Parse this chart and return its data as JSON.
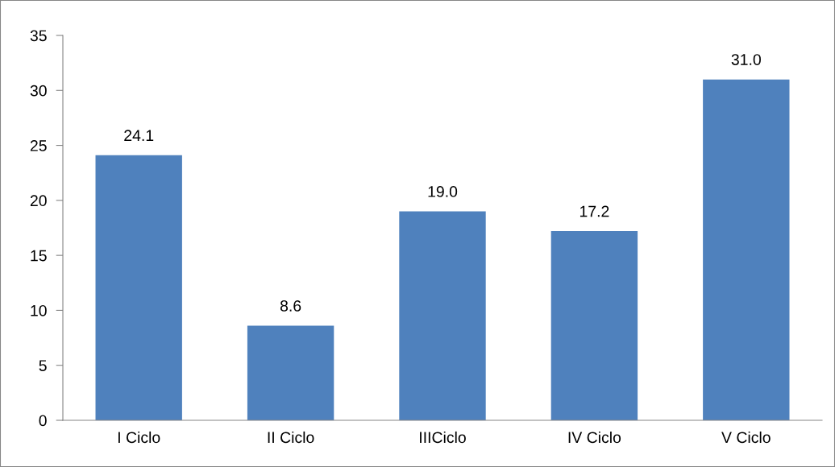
{
  "chart_data": {
    "type": "bar",
    "categories": [
      "I Ciclo",
      "II Ciclo",
      "IIICiclo",
      "IV Ciclo",
      "V Ciclo"
    ],
    "values": [
      24.1,
      8.6,
      19.0,
      17.2,
      31.0
    ],
    "value_labels": [
      "24.1",
      "8.6",
      "19.0",
      "17.2",
      "31.0"
    ],
    "color": "#4f81bd",
    "ylim": [
      0,
      35
    ],
    "yticks": [
      0,
      5,
      10,
      15,
      20,
      25,
      30,
      35
    ],
    "grid": false,
    "legend": false
  }
}
